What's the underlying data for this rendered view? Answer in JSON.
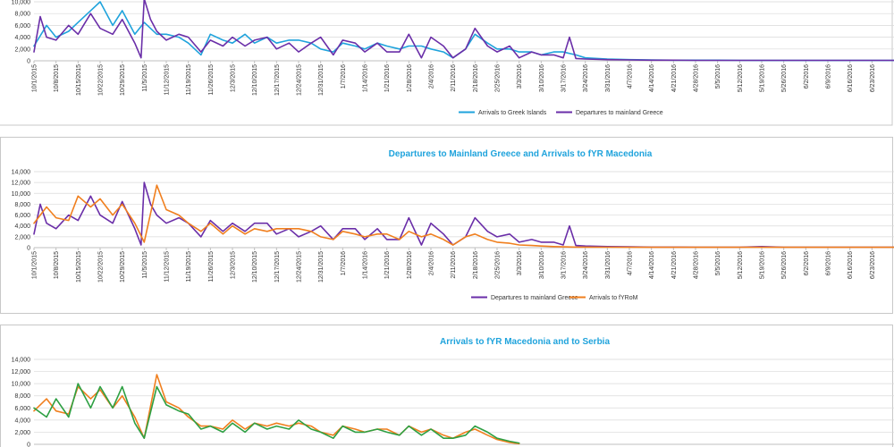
{
  "chart_data": [
    {
      "type": "line",
      "title": "",
      "ylim": [
        0,
        10000
      ],
      "yticks": [
        0,
        2000,
        4000,
        6000,
        8000,
        10000
      ],
      "ytick_labels": [
        "0",
        "2,000",
        "4,000",
        "6,000",
        "8,000",
        "10,000"
      ],
      "x_tick_labels": [
        "10/1/2015",
        "10/8/2015",
        "10/15/2015",
        "10/22/2015",
        "10/29/2015",
        "11/5/2015",
        "11/12/2015",
        "11/19/2015",
        "11/26/2015",
        "12/3/2015",
        "12/10/2015",
        "12/17/2015",
        "12/24/2015",
        "12/31/2015",
        "1/7/2016",
        "1/14/2016",
        "1/21/2016",
        "1/28/2016",
        "2/4/2016",
        "2/11/2016",
        "2/18/2016",
        "2/25/2016",
        "3/3/2016",
        "3/10/2016",
        "3/17/2016",
        "3/24/2016",
        "3/31/2016",
        "4/7/2016",
        "4/14/2016",
        "4/21/2016",
        "4/28/2016",
        "5/5/2016",
        "5/12/2016",
        "5/19/2016",
        "5/26/2016",
        "6/2/2016",
        "6/9/2016",
        "6/16/2016",
        "6/23/2016"
      ],
      "legend_position": "bottom",
      "series": [
        {
          "name": "Arrivals to Greek Islands",
          "color": "#1fa3dc",
          "x": [
            "10/1/2015",
            "10/5/2015",
            "10/8/2015",
            "10/12/2015",
            "10/15/2015",
            "10/19/2015",
            "10/22/2015",
            "10/26/2015",
            "10/29/2015",
            "11/2/2015",
            "11/5/2015",
            "11/9/2015",
            "11/12/2015",
            "11/16/2015",
            "11/19/2015",
            "11/23/2015",
            "11/26/2015",
            "11/30/2015",
            "12/3/2015",
            "12/7/2015",
            "12/10/2015",
            "12/14/2015",
            "12/17/2015",
            "12/21/2015",
            "12/24/2015",
            "12/28/2015",
            "12/31/2015",
            "1/4/2016",
            "1/7/2016",
            "1/11/2016",
            "1/14/2016",
            "1/18/2016",
            "1/21/2016",
            "1/25/2016",
            "1/28/2016",
            "2/1/2016",
            "2/4/2016",
            "2/8/2016",
            "2/11/2016",
            "2/15/2016",
            "2/18/2016",
            "2/22/2016",
            "2/25/2016",
            "2/29/2016",
            "3/3/2016",
            "3/7/2016",
            "3/10/2016",
            "3/14/2016",
            "3/17/2016",
            "3/21/2016",
            "3/24/2016",
            "3/31/2016",
            "4/7/2016",
            "4/14/2016",
            "4/21/2016",
            "4/28/2016",
            "5/5/2016",
            "5/12/2016",
            "5/19/2016",
            "5/26/2016",
            "6/2/2016",
            "6/9/2016",
            "6/16/2016",
            "6/23/2016",
            "6/30/2016"
          ],
          "values": [
            2500,
            6000,
            4000,
            5000,
            6500,
            8500,
            10000,
            6000,
            8500,
            4500,
            6500,
            4500,
            4500,
            4000,
            3000,
            1000,
            4500,
            3500,
            3000,
            4500,
            3000,
            4000,
            3000,
            3500,
            3500,
            3000,
            2000,
            1500,
            3000,
            2500,
            2000,
            3000,
            2500,
            2000,
            2500,
            2500,
            2000,
            1500,
            500,
            2000,
            4500,
            3000,
            2000,
            2000,
            1500,
            1500,
            1000,
            1500,
            1500,
            1000,
            500,
            300,
            200,
            150,
            100,
            100,
            100,
            80,
            60,
            60,
            60,
            60,
            60,
            60,
            60
          ]
        },
        {
          "name": "Departures to mainland Greece",
          "color": "#6a2ea8",
          "x": [
            "10/1/2015",
            "10/3/2015",
            "10/5/2015",
            "10/8/2015",
            "10/12/2015",
            "10/15/2015",
            "10/19/2015",
            "10/22/2015",
            "10/26/2015",
            "10/29/2015",
            "11/2/2015",
            "11/4/2015",
            "11/5/2015",
            "11/7/2015",
            "11/9/2015",
            "11/12/2015",
            "11/16/2015",
            "11/19/2015",
            "11/23/2015",
            "11/26/2015",
            "11/30/2015",
            "12/3/2015",
            "12/7/2015",
            "12/10/2015",
            "12/14/2015",
            "12/17/2015",
            "12/21/2015",
            "12/24/2015",
            "12/28/2015",
            "12/31/2015",
            "1/4/2016",
            "1/7/2016",
            "1/11/2016",
            "1/14/2016",
            "1/18/2016",
            "1/21/2016",
            "1/25/2016",
            "1/28/2016",
            "2/1/2016",
            "2/4/2016",
            "2/8/2016",
            "2/11/2016",
            "2/15/2016",
            "2/18/2016",
            "2/22/2016",
            "2/25/2016",
            "2/29/2016",
            "3/3/2016",
            "3/7/2016",
            "3/10/2016",
            "3/14/2016",
            "3/17/2016",
            "3/19/2016",
            "3/21/2016",
            "3/24/2016",
            "3/31/2016",
            "4/7/2016",
            "4/14/2016",
            "4/21/2016",
            "4/28/2016",
            "5/5/2016",
            "5/12/2016",
            "5/19/2016",
            "5/26/2016",
            "6/2/2016",
            "6/9/2016",
            "6/16/2016",
            "6/23/2016",
            "6/30/2016"
          ],
          "values": [
            1500,
            7500,
            4000,
            3500,
            6000,
            4500,
            8000,
            5500,
            4500,
            7000,
            3000,
            500,
            10500,
            7000,
            5000,
            3500,
            4500,
            4000,
            1500,
            3500,
            2500,
            4000,
            2500,
            3500,
            4000,
            2000,
            3000,
            1500,
            3000,
            4000,
            1000,
            3500,
            3000,
            1500,
            3000,
            1500,
            1500,
            4500,
            500,
            4000,
            2500,
            500,
            2000,
            5500,
            2500,
            1500,
            2500,
            500,
            1500,
            1000,
            1000,
            500,
            4000,
            400,
            300,
            200,
            150,
            100,
            100,
            80,
            80,
            80,
            80,
            80,
            80,
            80,
            80,
            80,
            80
          ]
        }
      ]
    },
    {
      "type": "line",
      "title": "Departures to Mainland Greece and Arrivals to fYR Macedonia",
      "ylim": [
        0,
        14000
      ],
      "yticks": [
        0,
        2000,
        4000,
        6000,
        8000,
        10000,
        12000,
        14000
      ],
      "ytick_labels": [
        "0",
        "2,000",
        "4,000",
        "6,000",
        "8,000",
        "10,000",
        "12,000",
        "14,000"
      ],
      "x_tick_labels": [
        "10/1/2015",
        "10/8/2015",
        "10/15/2015",
        "10/22/2015",
        "10/29/2015",
        "11/5/2015",
        "11/12/2015",
        "11/19/2015",
        "11/26/2015",
        "12/3/2015",
        "12/10/2015",
        "12/17/2015",
        "12/24/2015",
        "12/31/2015",
        "1/7/2016",
        "1/14/2016",
        "1/21/2016",
        "1/28/2016",
        "2/4/2016",
        "2/11/2016",
        "2/18/2016",
        "2/25/2016",
        "3/3/2016",
        "3/10/2016",
        "3/17/2016",
        "3/24/2016",
        "3/31/2016",
        "4/7/2016",
        "4/14/2016",
        "4/21/2016",
        "4/28/2016",
        "5/5/2016",
        "5/12/2016",
        "5/19/2016",
        "5/26/2016",
        "6/2/2016",
        "6/9/2016",
        "6/16/2016",
        "6/23/2016"
      ],
      "legend_position": "bottom",
      "series": [
        {
          "name": "Departures to mainland Greece",
          "color": "#6a2ea8",
          "x": [
            "10/1/2015",
            "10/3/2015",
            "10/5/2015",
            "10/8/2015",
            "10/12/2015",
            "10/15/2015",
            "10/19/2015",
            "10/22/2015",
            "10/26/2015",
            "10/29/2015",
            "11/2/2015",
            "11/4/2015",
            "11/5/2015",
            "11/7/2015",
            "11/9/2015",
            "11/12/2015",
            "11/16/2015",
            "11/19/2015",
            "11/23/2015",
            "11/26/2015",
            "11/30/2015",
            "12/3/2015",
            "12/7/2015",
            "12/10/2015",
            "12/14/2015",
            "12/17/2015",
            "12/21/2015",
            "12/24/2015",
            "12/28/2015",
            "12/31/2015",
            "1/4/2016",
            "1/7/2016",
            "1/11/2016",
            "1/14/2016",
            "1/18/2016",
            "1/21/2016",
            "1/25/2016",
            "1/28/2016",
            "2/1/2016",
            "2/4/2016",
            "2/8/2016",
            "2/11/2016",
            "2/15/2016",
            "2/18/2016",
            "2/22/2016",
            "2/25/2016",
            "2/29/2016",
            "3/3/2016",
            "3/7/2016",
            "3/10/2016",
            "3/14/2016",
            "3/17/2016",
            "3/19/2016",
            "3/21/2016",
            "3/24/2016",
            "3/31/2016",
            "4/7/2016",
            "4/14/2016",
            "4/21/2016",
            "4/28/2016",
            "5/5/2016",
            "5/12/2016",
            "5/19/2016",
            "5/26/2016",
            "6/2/2016",
            "6/9/2016",
            "6/16/2016",
            "6/23/2016",
            "6/30/2016"
          ],
          "values": [
            2500,
            8000,
            4500,
            3500,
            6000,
            5000,
            9500,
            6000,
            4500,
            8500,
            3500,
            500,
            12000,
            8000,
            6000,
            4500,
            5500,
            4500,
            2000,
            5000,
            3000,
            4500,
            3000,
            4500,
            4500,
            2500,
            3500,
            2000,
            3000,
            4000,
            1500,
            3500,
            3500,
            1500,
            3500,
            1500,
            1500,
            5500,
            500,
            4500,
            2500,
            500,
            2000,
            5500,
            3000,
            2000,
            2500,
            1000,
            1500,
            1000,
            1000,
            500,
            4000,
            400,
            300,
            200,
            150,
            100,
            100,
            80,
            80,
            80,
            200,
            80,
            80,
            80,
            80,
            80,
            80
          ]
        },
        {
          "name": "Arrivals to fYRoM",
          "color": "#f07f1e",
          "x": [
            "10/1/2015",
            "10/5/2015",
            "10/8/2015",
            "10/12/2015",
            "10/15/2015",
            "10/19/2015",
            "10/22/2015",
            "10/26/2015",
            "10/29/2015",
            "11/2/2015",
            "11/5/2015",
            "11/9/2015",
            "11/12/2015",
            "11/16/2015",
            "11/19/2015",
            "11/23/2015",
            "11/26/2015",
            "11/30/2015",
            "12/3/2015",
            "12/7/2015",
            "12/10/2015",
            "12/14/2015",
            "12/17/2015",
            "12/21/2015",
            "12/24/2015",
            "12/28/2015",
            "12/31/2015",
            "1/4/2016",
            "1/7/2016",
            "1/11/2016",
            "1/14/2016",
            "1/18/2016",
            "1/21/2016",
            "1/25/2016",
            "1/28/2016",
            "2/1/2016",
            "2/4/2016",
            "2/8/2016",
            "2/11/2016",
            "2/15/2016",
            "2/18/2016",
            "2/22/2016",
            "2/25/2016",
            "2/29/2016",
            "3/3/2016",
            "3/7/2016",
            "3/10/2016",
            "3/14/2016",
            "3/17/2016",
            "3/21/2016",
            "3/24/2016",
            "3/31/2016",
            "4/7/2016",
            "4/14/2016",
            "4/21/2016",
            "4/28/2016",
            "5/5/2016",
            "5/12/2016",
            "5/19/2016",
            "5/26/2016",
            "6/2/2016",
            "6/9/2016",
            "6/16/2016",
            "6/23/2016",
            "6/30/2016"
          ],
          "values": [
            4500,
            7500,
            5500,
            5000,
            9500,
            7500,
            9000,
            6000,
            8000,
            4500,
            1000,
            11500,
            7000,
            6000,
            4500,
            3000,
            4500,
            2500,
            4000,
            2500,
            3500,
            3000,
            3500,
            3500,
            3500,
            3000,
            2000,
            1500,
            3000,
            2500,
            2000,
            2500,
            2500,
            1500,
            3000,
            2000,
            2500,
            1500,
            500,
            2000,
            2500,
            1500,
            1000,
            800,
            500,
            400,
            300,
            200,
            150,
            100,
            100,
            80,
            60,
            60,
            60,
            60,
            60,
            60,
            60,
            60,
            60,
            60,
            60,
            60,
            60
          ]
        }
      ]
    },
    {
      "type": "line",
      "title": "Arrivals to fYR Macedonia and to Serbia",
      "ylim": [
        0,
        14000
      ],
      "yticks": [
        0,
        2000,
        4000,
        6000,
        8000,
        10000,
        12000,
        14000
      ],
      "ytick_labels": [
        "0",
        "2,000",
        "4,000",
        "6,000",
        "8,000",
        "10,000",
        "12,000",
        "14,000"
      ],
      "legend_position": "bottom",
      "series": [
        {
          "color": "#f07f1e",
          "x": [
            "10/1/2015",
            "10/5/2015",
            "10/8/2015",
            "10/12/2015",
            "10/15/2015",
            "10/19/2015",
            "10/22/2015",
            "10/26/2015",
            "10/29/2015",
            "11/2/2015",
            "11/5/2015",
            "11/9/2015",
            "11/12/2015",
            "11/16/2015",
            "11/19/2015",
            "11/23/2015",
            "11/26/2015",
            "11/30/2015",
            "12/3/2015",
            "12/7/2015",
            "12/10/2015",
            "12/14/2015",
            "12/17/2015",
            "12/21/2015",
            "12/24/2015",
            "12/28/2015",
            "12/31/2015",
            "1/4/2016",
            "1/7/2016",
            "1/11/2016",
            "1/14/2016",
            "1/18/2016",
            "1/21/2016",
            "1/25/2016",
            "1/28/2016",
            "2/1/2016",
            "2/4/2016",
            "2/8/2016",
            "2/11/2016",
            "2/15/2016",
            "2/18/2016",
            "2/22/2016",
            "2/25/2016",
            "2/29/2016",
            "3/3/2016"
          ],
          "values": [
            5500,
            7500,
            5500,
            5000,
            9500,
            7500,
            9000,
            6000,
            8000,
            4500,
            1000,
            11500,
            7000,
            6000,
            4500,
            3000,
            3000,
            2500,
            4000,
            2500,
            3500,
            3000,
            3500,
            3000,
            3500,
            3000,
            2000,
            1500,
            3000,
            2500,
            2000,
            2500,
            2500,
            1500,
            3000,
            2000,
            2500,
            1500,
            1000,
            2000,
            2500,
            1500,
            800,
            300,
            100
          ]
        },
        {
          "color": "#2ea043",
          "x": [
            "10/1/2015",
            "10/5/2015",
            "10/8/2015",
            "10/12/2015",
            "10/15/2015",
            "10/19/2015",
            "10/22/2015",
            "10/26/2015",
            "10/29/2015",
            "11/2/2015",
            "11/5/2015",
            "11/9/2015",
            "11/12/2015",
            "11/16/2015",
            "11/19/2015",
            "11/23/2015",
            "11/26/2015",
            "11/30/2015",
            "12/3/2015",
            "12/7/2015",
            "12/10/2015",
            "12/14/2015",
            "12/17/2015",
            "12/21/2015",
            "12/24/2015",
            "12/28/2015",
            "12/31/2015",
            "1/4/2016",
            "1/7/2016",
            "1/11/2016",
            "1/14/2016",
            "1/18/2016",
            "1/21/2016",
            "1/25/2016",
            "1/28/2016",
            "2/1/2016",
            "2/4/2016",
            "2/8/2016",
            "2/11/2016",
            "2/15/2016",
            "2/18/2016",
            "2/22/2016",
            "2/25/2016",
            "2/29/2016",
            "3/3/2016"
          ],
          "values": [
            6000,
            4500,
            7500,
            4500,
            10000,
            6000,
            9500,
            6000,
            9500,
            3500,
            1000,
            9500,
            6500,
            5500,
            5000,
            2500,
            3000,
            2000,
            3500,
            2000,
            3500,
            2500,
            3000,
            2500,
            4000,
            2500,
            2000,
            1000,
            3000,
            2000,
            2000,
            2500,
            2000,
            1500,
            3000,
            1500,
            2500,
            1000,
            1000,
            1500,
            3000,
            2000,
            1000,
            500,
            200
          ]
        }
      ]
    }
  ]
}
